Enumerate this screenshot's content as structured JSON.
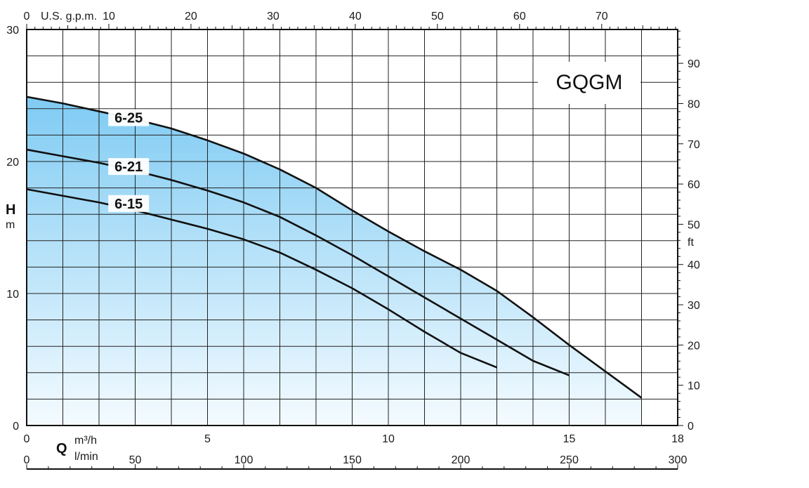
{
  "chart_data": {
    "type": "line",
    "title": "GQGM",
    "area_fill": true,
    "grid": true,
    "x_primary": {
      "label": "Q",
      "unit": "m³/h",
      "range": [
        0,
        18
      ],
      "ticks": [
        0,
        5,
        10,
        15,
        18
      ]
    },
    "x_secondary_bottom": {
      "unit": "l/min",
      "range": [
        0,
        300
      ],
      "ticks": [
        0,
        50,
        100,
        150,
        200,
        250,
        300
      ]
    },
    "x_secondary_top": {
      "unit": "U.S. g.p.m.",
      "range": [
        0,
        79.25
      ],
      "ticks": [
        0,
        10,
        20,
        30,
        40,
        50,
        60,
        70
      ]
    },
    "y_primary": {
      "label": "H",
      "unit": "m",
      "range": [
        0,
        30
      ],
      "ticks": [
        0,
        10,
        20,
        30
      ]
    },
    "y_secondary": {
      "unit": "ft",
      "range": [
        0,
        98.4
      ],
      "ticks": [
        0,
        10,
        20,
        30,
        40,
        50,
        60,
        70,
        80,
        90
      ]
    },
    "series": [
      {
        "name": "6-25",
        "x": [
          0,
          1,
          2,
          3,
          4,
          5,
          6,
          7,
          8,
          9,
          10,
          11,
          12,
          13,
          14,
          15,
          16,
          17
        ],
        "y": [
          24.9,
          24.4,
          23.8,
          23.2,
          22.5,
          21.6,
          20.6,
          19.4,
          18.0,
          16.3,
          14.7,
          13.2,
          11.8,
          10.2,
          8.2,
          6.1,
          4.1,
          2.1
        ]
      },
      {
        "name": "6-21",
        "x": [
          0,
          1,
          2,
          3,
          4,
          5,
          6,
          7,
          8,
          9,
          10,
          11,
          12,
          13,
          14,
          15
        ],
        "y": [
          20.9,
          20.4,
          19.9,
          19.3,
          18.6,
          17.8,
          16.9,
          15.8,
          14.4,
          12.9,
          11.3,
          9.7,
          8.1,
          6.5,
          4.9,
          3.8
        ]
      },
      {
        "name": "6-15",
        "x": [
          0,
          1,
          2,
          3,
          4,
          5,
          6,
          7,
          8,
          9,
          10,
          11,
          12,
          13
        ],
        "y": [
          17.9,
          17.4,
          16.9,
          16.3,
          15.6,
          14.9,
          14.1,
          13.1,
          11.8,
          10.4,
          8.8,
          7.1,
          5.5,
          4.4
        ]
      }
    ]
  },
  "axis_text": {
    "gpm_unit": "U.S. g.p.m.",
    "q_label": "Q",
    "m3h_unit": "m³/h",
    "lmin_unit": "l/min",
    "h_label": "H",
    "m_unit": "m",
    "ft_unit": "ft"
  },
  "colors": {
    "fill_top": "#7fcbf3",
    "fill_bottom": "#f4fbff",
    "curve": "#111111",
    "grid": "#222222"
  }
}
